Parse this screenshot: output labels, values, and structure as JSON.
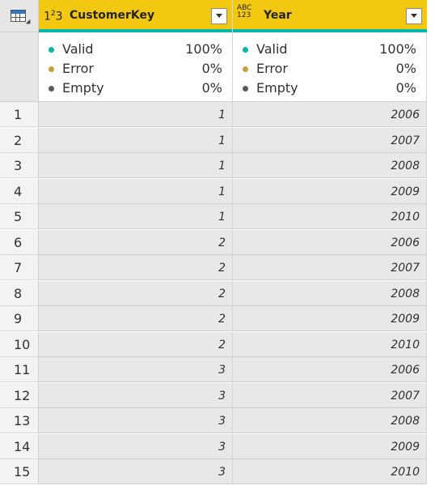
{
  "columns": [
    {
      "type_icon": "123",
      "name": "CustomerKey",
      "quality": [
        {
          "label": "Valid",
          "pct": "100%"
        },
        {
          "label": "Error",
          "pct": "0%"
        },
        {
          "label": "Empty",
          "pct": "0%"
        }
      ]
    },
    {
      "type_icon": "ABC123",
      "name": "Year",
      "quality": [
        {
          "label": "Valid",
          "pct": "100%"
        },
        {
          "label": "Error",
          "pct": "0%"
        },
        {
          "label": "Empty",
          "pct": "0%"
        }
      ]
    }
  ],
  "quality_colors": {
    "Valid": "#01b8aa",
    "Error": "#c7a03a",
    "Empty": "#5a5a5a"
  },
  "rows": [
    {
      "n": "1",
      "customer_key": "1",
      "year": "2006"
    },
    {
      "n": "2",
      "customer_key": "1",
      "year": "2007"
    },
    {
      "n": "3",
      "customer_key": "1",
      "year": "2008"
    },
    {
      "n": "4",
      "customer_key": "1",
      "year": "2009"
    },
    {
      "n": "5",
      "customer_key": "1",
      "year": "2010"
    },
    {
      "n": "6",
      "customer_key": "2",
      "year": "2006"
    },
    {
      "n": "7",
      "customer_key": "2",
      "year": "2007"
    },
    {
      "n": "8",
      "customer_key": "2",
      "year": "2008"
    },
    {
      "n": "9",
      "customer_key": "2",
      "year": "2009"
    },
    {
      "n": "10",
      "customer_key": "2",
      "year": "2010"
    },
    {
      "n": "11",
      "customer_key": "3",
      "year": "2006"
    },
    {
      "n": "12",
      "customer_key": "3",
      "year": "2007"
    },
    {
      "n": "13",
      "customer_key": "3",
      "year": "2008"
    },
    {
      "n": "14",
      "customer_key": "3",
      "year": "2009"
    },
    {
      "n": "15",
      "customer_key": "3",
      "year": "2010"
    }
  ]
}
